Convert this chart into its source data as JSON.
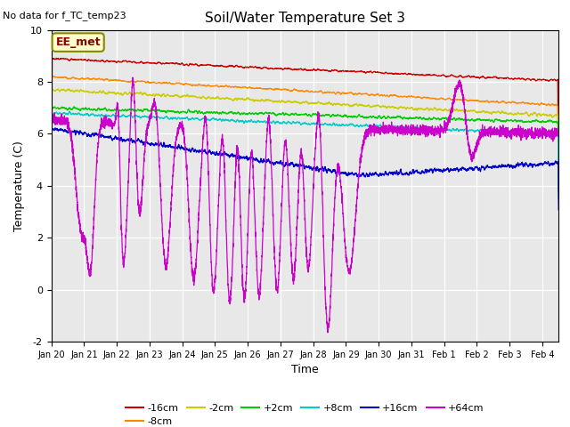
{
  "title": "Soil/Water Temperature Set 3",
  "xlabel": "Time",
  "ylabel": "Temperature (C)",
  "note": "No data for f_TC_temp23",
  "station_label": "EE_met",
  "ylim": [
    -2,
    10
  ],
  "background_color": "#e8e8e8",
  "colors": {
    "-16cm": "#cc0000",
    "-8cm": "#ff8800",
    "-2cm": "#cccc00",
    "+2cm": "#00cc00",
    "+8cm": "#00cccc",
    "+16cm": "#0000cc",
    "+64cm": "#cc00cc"
  },
  "xtick_labels": [
    "Jan 20",
    "Jan 21",
    "Jan 22",
    "Jan 23",
    "Jan 24",
    "Jan 25",
    "Jan 26",
    "Jan 27",
    "Jan 28",
    "Jan 29",
    "Jan 30",
    "Jan 31",
    "Feb 1",
    "Feb 2",
    "Feb 3",
    "Feb 4"
  ],
  "ytick_vals": [
    -2,
    0,
    2,
    4,
    6,
    8,
    10
  ]
}
